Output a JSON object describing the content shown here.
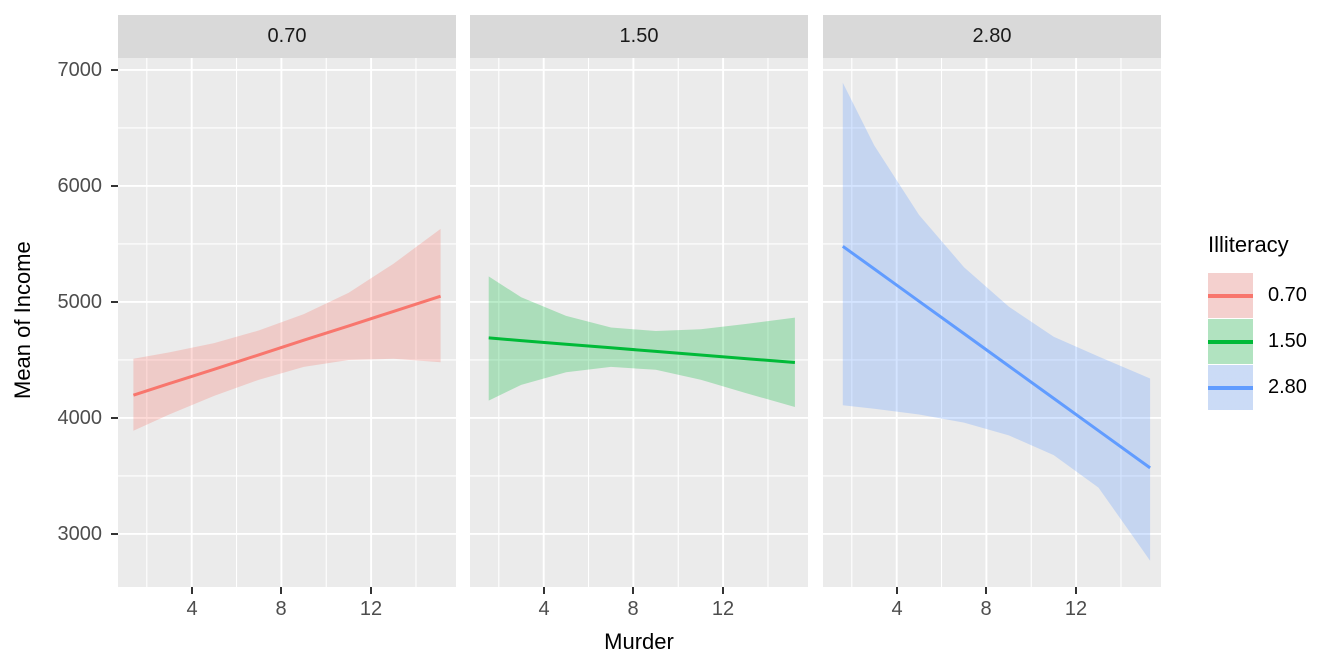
{
  "style": {
    "background": "#FFFFFF",
    "panel_background": "#EBEBEB",
    "strip_background": "#D9D9D9",
    "grid_color": "#FFFFFF",
    "tick_color": "#333333",
    "tick_label_color": "#4D4D4D",
    "ribbon_opacity": 0.27
  },
  "chart_data": {
    "type": "line",
    "title": "",
    "xlabel": "Murder",
    "ylabel": "Mean of Income",
    "facet_variable": "Illiteracy",
    "xlim": [
      0.715,
      15.785
    ],
    "ylim": [
      2543,
      7103
    ],
    "x_ticks": [
      4,
      8,
      12
    ],
    "x_minor": [
      2,
      6,
      10,
      14
    ],
    "y_ticks": [
      3000,
      4000,
      5000,
      6000,
      7000
    ],
    "y_minor": [
      3500,
      4500,
      5500,
      6500
    ],
    "grid": true,
    "legend": {
      "title": "Illiteracy",
      "position": "right",
      "entries": [
        {
          "label": "0.70",
          "color": "#F8766D"
        },
        {
          "label": "1.50",
          "color": "#00BA38"
        },
        {
          "label": "2.80",
          "color": "#619CFF"
        }
      ]
    },
    "facets": [
      {
        "label": "0.70",
        "color": "#F8766D",
        "series": {
          "x": [
            1.4,
            3,
            5,
            7,
            9,
            11,
            13,
            15.1
          ],
          "y": [
            4196,
            4296,
            4420,
            4545,
            4670,
            4794,
            4919,
            5050
          ],
          "upper": [
            4510,
            4565,
            4645,
            4755,
            4895,
            5080,
            5330,
            5630
          ],
          "lower": [
            3890,
            4030,
            4190,
            4330,
            4440,
            4500,
            4510,
            4480
          ]
        }
      },
      {
        "label": "1.50",
        "color": "#00BA38",
        "series": {
          "x": [
            1.55,
            3,
            5,
            7,
            9,
            11,
            13,
            15.2
          ],
          "y": [
            4690,
            4667,
            4636,
            4605,
            4574,
            4543,
            4512,
            4478
          ],
          "upper": [
            5220,
            5040,
            4880,
            4780,
            4750,
            4765,
            4810,
            4865
          ],
          "lower": [
            4150,
            4285,
            4395,
            4440,
            4415,
            4330,
            4215,
            4095
          ]
        }
      },
      {
        "label": "2.80",
        "color": "#619CFF",
        "series": {
          "x": [
            1.6,
            3,
            5,
            7,
            9,
            11,
            13,
            15.3
          ],
          "y": [
            5480,
            5285,
            5006,
            4727,
            4448,
            4169,
            3890,
            3570
          ],
          "upper": [
            6890,
            6350,
            5750,
            5300,
            4960,
            4700,
            4530,
            4340
          ],
          "lower": [
            4110,
            4080,
            4030,
            3960,
            3850,
            3680,
            3400,
            2770
          ]
        }
      }
    ]
  }
}
